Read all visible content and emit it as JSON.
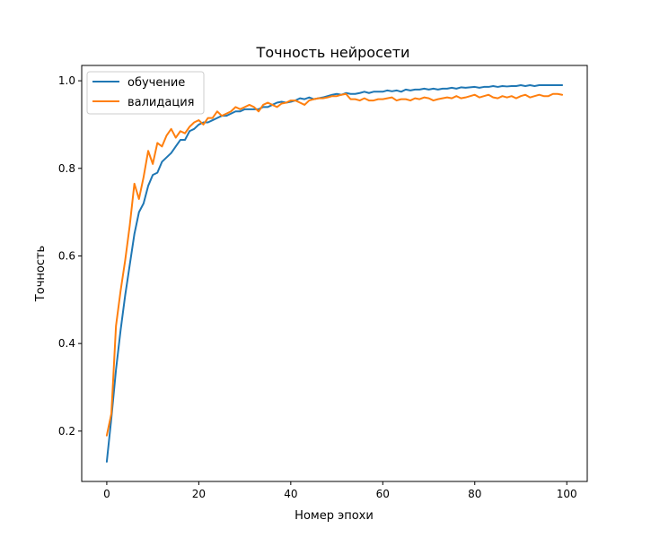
{
  "chart_data": {
    "type": "line",
    "title": "Точность нейросети",
    "xlabel": "Номер эпохи",
    "ylabel": "Точность",
    "xlim": [
      -5.45,
      104.45
    ],
    "ylim": [
      0.085,
      1.035
    ],
    "x_ticks": [
      0,
      20,
      40,
      60,
      80,
      100
    ],
    "y_ticks": [
      0.2,
      0.4,
      0.6,
      0.8,
      1.0
    ],
    "x_tick_labels": [
      "0",
      "20",
      "40",
      "60",
      "80",
      "100"
    ],
    "y_tick_labels": [
      "0.2",
      "0.4",
      "0.6",
      "0.8",
      "1.0"
    ],
    "grid": false,
    "legend_position": "top-left",
    "series": [
      {
        "name": "обучение",
        "color": "#1f77b4",
        "values": [
          0.13,
          0.23,
          0.34,
          0.43,
          0.51,
          0.58,
          0.65,
          0.7,
          0.72,
          0.76,
          0.785,
          0.79,
          0.815,
          0.825,
          0.835,
          0.85,
          0.865,
          0.865,
          0.885,
          0.89,
          0.9,
          0.905,
          0.905,
          0.91,
          0.915,
          0.92,
          0.92,
          0.925,
          0.93,
          0.93,
          0.935,
          0.935,
          0.935,
          0.935,
          0.94,
          0.94,
          0.945,
          0.95,
          0.952,
          0.95,
          0.952,
          0.955,
          0.96,
          0.958,
          0.962,
          0.958,
          0.96,
          0.962,
          0.965,
          0.968,
          0.97,
          0.968,
          0.972,
          0.97,
          0.97,
          0.972,
          0.975,
          0.972,
          0.975,
          0.975,
          0.975,
          0.978,
          0.976,
          0.978,
          0.975,
          0.98,
          0.978,
          0.98,
          0.98,
          0.982,
          0.98,
          0.982,
          0.98,
          0.982,
          0.982,
          0.984,
          0.982,
          0.985,
          0.984,
          0.985,
          0.986,
          0.984,
          0.986,
          0.986,
          0.988,
          0.986,
          0.988,
          0.987,
          0.988,
          0.988,
          0.99,
          0.988,
          0.99,
          0.988,
          0.99,
          0.99,
          0.99,
          0.99,
          0.99,
          0.99
        ]
      },
      {
        "name": "валидация",
        "color": "#ff7f0e",
        "values": [
          0.19,
          0.24,
          0.44,
          0.52,
          0.59,
          0.67,
          0.765,
          0.73,
          0.78,
          0.84,
          0.81,
          0.858,
          0.85,
          0.875,
          0.89,
          0.87,
          0.885,
          0.88,
          0.895,
          0.905,
          0.91,
          0.9,
          0.915,
          0.915,
          0.93,
          0.92,
          0.925,
          0.93,
          0.94,
          0.935,
          0.94,
          0.945,
          0.94,
          0.93,
          0.945,
          0.95,
          0.945,
          0.94,
          0.948,
          0.95,
          0.955,
          0.955,
          0.95,
          0.945,
          0.955,
          0.958,
          0.96,
          0.96,
          0.962,
          0.965,
          0.965,
          0.968,
          0.97,
          0.958,
          0.958,
          0.955,
          0.96,
          0.955,
          0.955,
          0.958,
          0.958,
          0.96,
          0.962,
          0.955,
          0.958,
          0.958,
          0.955,
          0.96,
          0.958,
          0.962,
          0.96,
          0.955,
          0.958,
          0.96,
          0.962,
          0.96,
          0.965,
          0.96,
          0.962,
          0.965,
          0.968,
          0.962,
          0.965,
          0.968,
          0.962,
          0.96,
          0.965,
          0.962,
          0.965,
          0.96,
          0.965,
          0.968,
          0.962,
          0.965,
          0.968,
          0.965,
          0.965,
          0.97,
          0.97,
          0.968
        ]
      }
    ]
  }
}
